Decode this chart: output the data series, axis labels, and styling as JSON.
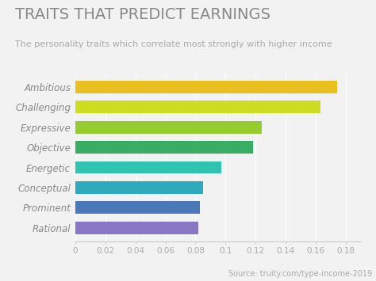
{
  "title": "TRAITS THAT PREDICT EARNINGS",
  "subtitle": "The personality traits which correlate most strongly with higher income",
  "source": "Source: truity.com/type-income-2019",
  "categories": [
    "Rational",
    "Prominent",
    "Conceptual",
    "Energetic",
    "Objective",
    "Expressive",
    "Challenging",
    "Ambitious"
  ],
  "values": [
    0.082,
    0.083,
    0.085,
    0.097,
    0.118,
    0.124,
    0.163,
    0.174
  ],
  "bar_colors": [
    "#8878c3",
    "#4a78b8",
    "#2eaabf",
    "#2ec4b0",
    "#3aad65",
    "#96cc2e",
    "#ccdd22",
    "#e8c020"
  ],
  "xlim": [
    0,
    0.19
  ],
  "xticks": [
    0,
    0.02,
    0.04,
    0.06,
    0.08,
    0.1,
    0.12,
    0.14,
    0.16,
    0.18
  ],
  "xtick_labels": [
    "0",
    "0.02",
    "0.04",
    "0.06",
    "0.08",
    "0.1",
    "0.12",
    "0.14",
    "0.16",
    "0.18"
  ],
  "background_color": "#f2f2f2",
  "title_color": "#888888",
  "subtitle_color": "#aaaaaa",
  "label_color": "#888888",
  "tick_color": "#aaaaaa",
  "source_color": "#aaaaaa",
  "title_fontsize": 14,
  "subtitle_fontsize": 8,
  "bar_height": 0.62,
  "label_fontsize": 8.5,
  "tick_fontsize": 7.5,
  "source_fontsize": 7
}
